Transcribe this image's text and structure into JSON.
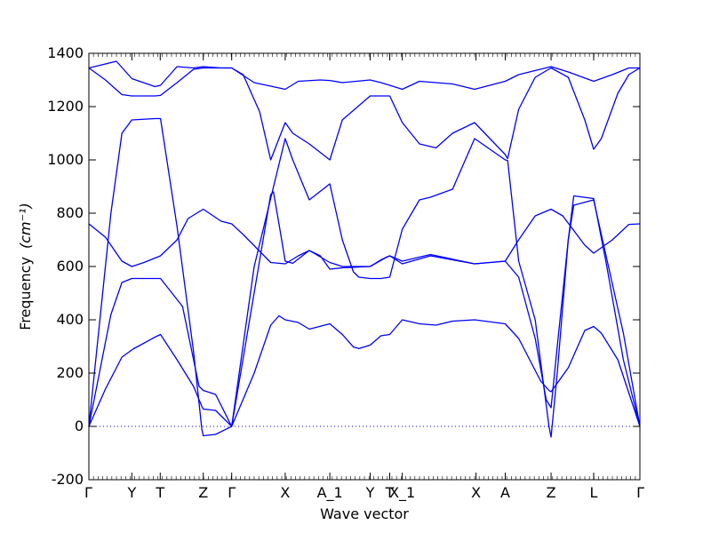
{
  "chart_data": {
    "type": "line",
    "xlabel": "Wave vector",
    "ylabel": "Frequency",
    "ylabel_unit": "(cm⁻¹)",
    "ylim": [
      -200,
      1400
    ],
    "yticks": [
      -200,
      0,
      200,
      400,
      600,
      800,
      1000,
      1200,
      1400
    ],
    "xlim": [
      0,
      1
    ],
    "grid": false,
    "zero_line": true,
    "color": "#0000ff",
    "xticks": [
      {
        "label": "Γ",
        "x": 0.0
      },
      {
        "label": "Y",
        "x": 0.078
      },
      {
        "label": "T",
        "x": 0.1295
      },
      {
        "label": "Z",
        "x": 0.2076
      },
      {
        "label": "Γ",
        "x": 0.2592
      },
      {
        "label": "X",
        "x": 0.3563
      },
      {
        "label": "A_1",
        "x": 0.4373
      },
      {
        "label": "Y",
        "x": 0.5105
      },
      {
        "label": "T",
        "x": 0.546
      },
      {
        "label": "X_1",
        "x": 0.5688
      },
      {
        "label": "X",
        "x": 0.7026
      },
      {
        "label": "A",
        "x": 0.7556
      },
      {
        "label": "Z",
        "x": 0.8388
      },
      {
        "label": "L",
        "x": 0.9161
      },
      {
        "label": "Γ",
        "x": 1.0
      }
    ],
    "series": [
      {
        "points": [
          [
            0,
            0
          ],
          [
            0.03,
            140
          ],
          [
            0.06,
            260
          ],
          [
            0.08,
            290
          ],
          [
            0.12,
            335
          ],
          [
            0.13,
            345
          ],
          [
            0.16,
            250
          ],
          [
            0.19,
            150
          ],
          [
            0.205,
            75
          ],
          [
            0.2076,
            65
          ],
          [
            0.23,
            60
          ],
          [
            0.2592,
            0
          ],
          [
            0.3,
            200
          ],
          [
            0.33,
            380
          ],
          [
            0.345,
            415
          ],
          [
            0.3563,
            400
          ],
          [
            0.38,
            390
          ],
          [
            0.4,
            365
          ],
          [
            0.4373,
            385
          ],
          [
            0.46,
            345
          ],
          [
            0.48,
            298
          ],
          [
            0.49,
            292
          ],
          [
            0.5105,
            305
          ],
          [
            0.53,
            340
          ],
          [
            0.546,
            345
          ],
          [
            0.5688,
            400
          ],
          [
            0.6,
            385
          ],
          [
            0.63,
            380
          ],
          [
            0.66,
            395
          ],
          [
            0.7,
            400
          ],
          [
            0.7556,
            385
          ],
          [
            0.78,
            330
          ],
          [
            0.82,
            170
          ],
          [
            0.835,
            135
          ],
          [
            0.8388,
            130
          ],
          [
            0.87,
            220
          ],
          [
            0.9,
            360
          ],
          [
            0.9161,
            375
          ],
          [
            0.93,
            350
          ],
          [
            0.96,
            250
          ],
          [
            1.0,
            0
          ]
        ]
      },
      {
        "points": [
          [
            0,
            0
          ],
          [
            0.04,
            420
          ],
          [
            0.06,
            540
          ],
          [
            0.078,
            555
          ],
          [
            0.12,
            555
          ],
          [
            0.13,
            555
          ],
          [
            0.17,
            450
          ],
          [
            0.2,
            150
          ],
          [
            0.2076,
            135
          ],
          [
            0.23,
            120
          ],
          [
            0.2592,
            0
          ],
          [
            0.33,
            870
          ],
          [
            0.335,
            880
          ],
          [
            0.345,
            760
          ],
          [
            0.3563,
            620
          ],
          [
            0.37,
            612
          ],
          [
            0.4,
            660
          ],
          [
            0.42,
            640
          ],
          [
            0.4373,
            590
          ],
          [
            0.46,
            595
          ],
          [
            0.5105,
            600
          ],
          [
            0.53,
            625
          ],
          [
            0.546,
            640
          ],
          [
            0.5688,
            610
          ],
          [
            0.62,
            640
          ],
          [
            0.7,
            610
          ],
          [
            0.7556,
            620
          ],
          [
            0.78,
            560
          ],
          [
            0.81,
            330
          ],
          [
            0.83,
            100
          ],
          [
            0.8388,
            70
          ],
          [
            0.85,
            300
          ],
          [
            0.87,
            700
          ],
          [
            0.88,
            830
          ],
          [
            0.9161,
            850
          ],
          [
            0.93,
            720
          ],
          [
            0.97,
            350
          ],
          [
            1.0,
            0
          ]
        ]
      },
      {
        "points": [
          [
            0,
            760
          ],
          [
            0.03,
            710
          ],
          [
            0.06,
            620
          ],
          [
            0.078,
            600
          ],
          [
            0.1,
            615
          ],
          [
            0.13,
            640
          ],
          [
            0.16,
            700
          ],
          [
            0.18,
            780
          ],
          [
            0.2076,
            815
          ],
          [
            0.24,
            770
          ],
          [
            0.2592,
            760
          ],
          [
            0.28,
            720
          ],
          [
            0.33,
            615
          ],
          [
            0.3563,
            610
          ],
          [
            0.38,
            640
          ],
          [
            0.4,
            660
          ],
          [
            0.4373,
            615
          ],
          [
            0.46,
            600
          ],
          [
            0.5105,
            600
          ],
          [
            0.54,
            635
          ],
          [
            0.546,
            640
          ],
          [
            0.5688,
            620
          ],
          [
            0.62,
            645
          ],
          [
            0.7,
            610
          ],
          [
            0.7556,
            620
          ],
          [
            0.78,
            700
          ],
          [
            0.81,
            790
          ],
          [
            0.8388,
            815
          ],
          [
            0.86,
            790
          ],
          [
            0.9,
            680
          ],
          [
            0.9161,
            650
          ],
          [
            0.95,
            700
          ],
          [
            0.98,
            758
          ],
          [
            1.0,
            760
          ]
        ]
      },
      {
        "points": [
          [
            0,
            0
          ],
          [
            0.02,
            400
          ],
          [
            0.04,
            800
          ],
          [
            0.06,
            1100
          ],
          [
            0.078,
            1150
          ],
          [
            0.12,
            1155
          ],
          [
            0.13,
            1155
          ],
          [
            0.16,
            750
          ],
          [
            0.19,
            280
          ],
          [
            0.205,
            -10
          ],
          [
            0.2076,
            -35
          ],
          [
            0.23,
            -30
          ],
          [
            0.2592,
            0
          ],
          [
            0.3,
            600
          ],
          [
            0.3563,
            1080
          ],
          [
            0.37,
            1000
          ],
          [
            0.4,
            850
          ],
          [
            0.4373,
            910
          ],
          [
            0.46,
            700
          ],
          [
            0.48,
            580
          ],
          [
            0.49,
            560
          ],
          [
            0.5105,
            555
          ],
          [
            0.53,
            555
          ],
          [
            0.546,
            560
          ],
          [
            0.5688,
            740
          ],
          [
            0.6,
            850
          ],
          [
            0.62,
            860
          ],
          [
            0.66,
            890
          ],
          [
            0.7,
            1080
          ],
          [
            0.7556,
            1000
          ],
          [
            0.76,
            998
          ],
          [
            0.78,
            620
          ],
          [
            0.81,
            400
          ],
          [
            0.835,
            0
          ],
          [
            0.8388,
            -40
          ],
          [
            0.85,
            200
          ],
          [
            0.87,
            700
          ],
          [
            0.88,
            865
          ],
          [
            0.9161,
            855
          ],
          [
            0.94,
            600
          ],
          [
            0.97,
            250
          ],
          [
            1.0,
            0
          ]
        ]
      },
      {
        "points": [
          [
            0,
            1345
          ],
          [
            0.03,
            1300
          ],
          [
            0.06,
            1245
          ],
          [
            0.078,
            1240
          ],
          [
            0.12,
            1240
          ],
          [
            0.13,
            1242
          ],
          [
            0.16,
            1290
          ],
          [
            0.19,
            1340
          ],
          [
            0.2076,
            1345
          ],
          [
            0.24,
            1345
          ],
          [
            0.2592,
            1345
          ],
          [
            0.28,
            1320
          ],
          [
            0.31,
            1180
          ],
          [
            0.33,
            1000
          ],
          [
            0.3563,
            1140
          ],
          [
            0.37,
            1100
          ],
          [
            0.4,
            1060
          ],
          [
            0.4373,
            1000
          ],
          [
            0.46,
            1150
          ],
          [
            0.5105,
            1240
          ],
          [
            0.53,
            1240
          ],
          [
            0.546,
            1240
          ],
          [
            0.5688,
            1140
          ],
          [
            0.6,
            1060
          ],
          [
            0.63,
            1045
          ],
          [
            0.66,
            1100
          ],
          [
            0.7,
            1140
          ],
          [
            0.7556,
            1020
          ],
          [
            0.76,
            1005
          ],
          [
            0.78,
            1190
          ],
          [
            0.81,
            1310
          ],
          [
            0.8388,
            1345
          ],
          [
            0.87,
            1310
          ],
          [
            0.9,
            1150
          ],
          [
            0.9161,
            1040
          ],
          [
            0.93,
            1080
          ],
          [
            0.96,
            1250
          ],
          [
            0.98,
            1320
          ],
          [
            1.0,
            1345
          ]
        ]
      },
      {
        "points": [
          [
            0,
            1345
          ],
          [
            0.03,
            1360
          ],
          [
            0.05,
            1370
          ],
          [
            0.078,
            1305
          ],
          [
            0.12,
            1275
          ],
          [
            0.13,
            1280
          ],
          [
            0.16,
            1350
          ],
          [
            0.19,
            1345
          ],
          [
            0.2076,
            1350
          ],
          [
            0.24,
            1345
          ],
          [
            0.2592,
            1345
          ],
          [
            0.3,
            1290
          ],
          [
            0.3563,
            1265
          ],
          [
            0.38,
            1295
          ],
          [
            0.42,
            1300
          ],
          [
            0.4373,
            1298
          ],
          [
            0.46,
            1290
          ],
          [
            0.5105,
            1300
          ],
          [
            0.53,
            1290
          ],
          [
            0.546,
            1280
          ],
          [
            0.5688,
            1265
          ],
          [
            0.6,
            1295
          ],
          [
            0.66,
            1285
          ],
          [
            0.7,
            1265
          ],
          [
            0.7556,
            1295
          ],
          [
            0.78,
            1320
          ],
          [
            0.8388,
            1350
          ],
          [
            0.87,
            1330
          ],
          [
            0.9161,
            1295
          ],
          [
            0.95,
            1320
          ],
          [
            0.98,
            1345
          ],
          [
            1.0,
            1345
          ]
        ]
      }
    ]
  }
}
